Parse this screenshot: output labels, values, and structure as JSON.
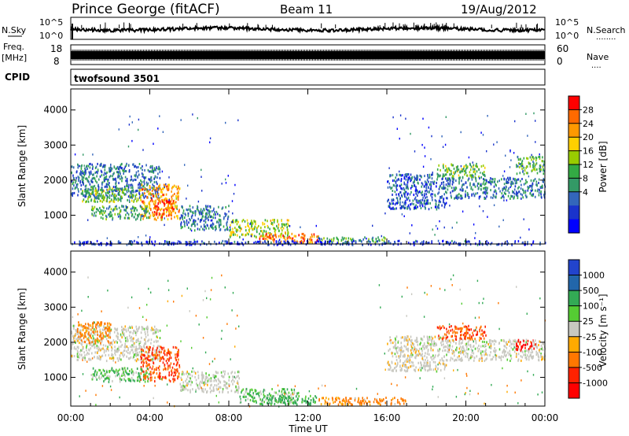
{
  "header": {
    "station": "Prince George (fitACF)",
    "beam": "Beam 11",
    "date": "19/Aug/2012"
  },
  "noise_panel": {
    "left_label": "N.Sky",
    "right_label": "N.Search",
    "right_dots": "........",
    "left_ticks": [
      "10^5",
      "10^0"
    ],
    "right_ticks": [
      "10^5",
      "10^0"
    ]
  },
  "freq_panel": {
    "left_label_1": "Freq.",
    "left_label_2": "[MHz]",
    "right_label": "Nave",
    "right_dots": "....",
    "left_ticks": [
      "18",
      "8"
    ],
    "right_ticks": [
      "60",
      "0"
    ]
  },
  "cpid": {
    "label": "CPID",
    "value": "twofsound 3501"
  },
  "x_axis": {
    "ticks": [
      "00:00",
      "04:00",
      "08:00",
      "12:00",
      "16:00",
      "20:00",
      "00:00"
    ],
    "label": "Time UT"
  },
  "power_colorbar": {
    "label": "Power [dB]",
    "ticks": [
      "28",
      "24",
      "20",
      "16",
      "12",
      "8",
      "4"
    ],
    "colors": [
      "#ff0000",
      "#ff6a00",
      "#ff9900",
      "#ffd000",
      "#99cc00",
      "#33aa44",
      "#339966",
      "#3366bb",
      "#1a33cc",
      "#0000ff"
    ]
  },
  "velocity_colorbar": {
    "label": "Velocity [m s⁻¹]",
    "ticks": [
      "1000",
      "500",
      "100",
      "25",
      "-25",
      "-100",
      "-500",
      "-1000"
    ],
    "colors": [
      "#2244cc",
      "#2266aa",
      "#33aa55",
      "#55cc33",
      "#c8c8c0",
      "#ffaa00",
      "#ff7700",
      "#ff2200",
      "#ff0000"
    ]
  },
  "chart_data": [
    {
      "type": "heatmap",
      "name": "Power",
      "ylabel": "Slant Range [km]",
      "xlabel": "Time UT",
      "xlim": [
        0,
        24
      ],
      "ylim": [
        180,
        4600
      ],
      "yticks": [
        1000,
        2000,
        3000,
        4000
      ],
      "ytick_labels": [
        "1000",
        "2000",
        "3000",
        "4000"
      ],
      "regions": [
        {
          "t": [
            0.0,
            4.5
          ],
          "r": [
            1500,
            2500
          ],
          "v": 10
        },
        {
          "t": [
            0.5,
            3.5
          ],
          "r": [
            1400,
            1800
          ],
          "v": 16
        },
        {
          "t": [
            3.5,
            5.5
          ],
          "r": [
            900,
            1900
          ],
          "v": 24
        },
        {
          "t": [
            4.2,
            5.2
          ],
          "r": [
            1000,
            1500
          ],
          "v": 28
        },
        {
          "t": [
            1.0,
            4.0
          ],
          "r": [
            900,
            1300
          ],
          "v": 14
        },
        {
          "t": [
            5.5,
            8.0
          ],
          "r": [
            600,
            1300
          ],
          "v": 10
        },
        {
          "t": [
            8.0,
            11.0
          ],
          "r": [
            400,
            900
          ],
          "v": 18
        },
        {
          "t": [
            9.5,
            12.5
          ],
          "r": [
            250,
            500
          ],
          "v": 26
        },
        {
          "t": [
            12.5,
            16.0
          ],
          "r": [
            250,
            400
          ],
          "v": 14
        },
        {
          "t": [
            16.0,
            19.0
          ],
          "r": [
            1200,
            2200
          ],
          "v": 8
        },
        {
          "t": [
            18.5,
            21.0
          ],
          "r": [
            2100,
            2500
          ],
          "v": 16
        },
        {
          "t": [
            19.0,
            24.0
          ],
          "r": [
            1500,
            2100
          ],
          "v": 10
        },
        {
          "t": [
            22.5,
            24.0
          ],
          "r": [
            2200,
            2700
          ],
          "v": 14
        },
        {
          "t": [
            0.0,
            24.0
          ],
          "r": [
            180,
            300
          ],
          "v": 6
        }
      ]
    },
    {
      "type": "heatmap",
      "name": "Velocity",
      "ylabel": "Slant Range [km]",
      "xlabel": "Time UT",
      "xlim": [
        0,
        24
      ],
      "ylim": [
        180,
        4600
      ],
      "yticks": [
        1000,
        2000,
        3000,
        4000
      ],
      "ytick_labels": [
        "1000",
        "2000",
        "3000",
        "4000"
      ],
      "regions": [
        {
          "t": [
            0.0,
            4.5
          ],
          "r": [
            1500,
            2500
          ],
          "v": 0
        },
        {
          "t": [
            0.3,
            2.0
          ],
          "r": [
            2000,
            2600
          ],
          "v": -100
        },
        {
          "t": [
            3.5,
            5.5
          ],
          "r": [
            900,
            1900
          ],
          "v": -300
        },
        {
          "t": [
            1.0,
            4.0
          ],
          "r": [
            900,
            1300
          ],
          "v": 50
        },
        {
          "t": [
            5.5,
            8.5
          ],
          "r": [
            600,
            1200
          ],
          "v": 0
        },
        {
          "t": [
            8.5,
            11.5
          ],
          "r": [
            300,
            700
          ],
          "v": 50
        },
        {
          "t": [
            9.5,
            12.5
          ],
          "r": [
            250,
            500
          ],
          "v": 100
        },
        {
          "t": [
            12.5,
            17.0
          ],
          "r": [
            250,
            450
          ],
          "v": -100
        },
        {
          "t": [
            16.0,
            19.0
          ],
          "r": [
            1200,
            2200
          ],
          "v": 0
        },
        {
          "t": [
            18.5,
            21.0
          ],
          "r": [
            2100,
            2500
          ],
          "v": -300
        },
        {
          "t": [
            19.0,
            24.0
          ],
          "r": [
            1500,
            2100
          ],
          "v": 0
        },
        {
          "t": [
            22.5,
            23.5
          ],
          "r": [
            1800,
            2100
          ],
          "v": -800
        }
      ]
    }
  ]
}
